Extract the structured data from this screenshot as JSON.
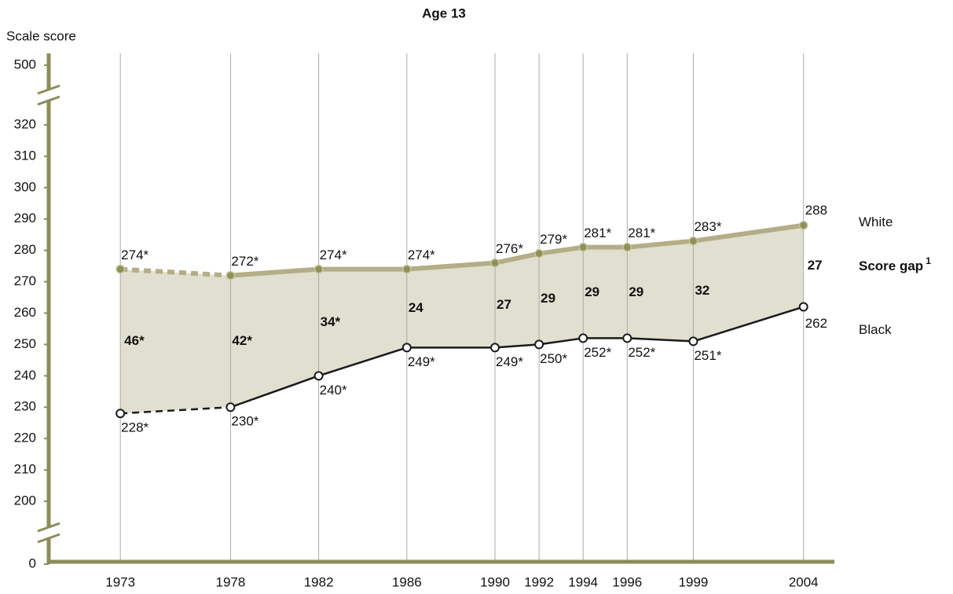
{
  "chart_data": {
    "type": "line",
    "title": "Age 13",
    "y_label": "Scale score",
    "x": [
      1973,
      1978,
      1982,
      1986,
      1990,
      1992,
      1994,
      1996,
      1999,
      2004
    ],
    "xticks": [
      1973,
      1978,
      1982,
      1986,
      1990,
      1992,
      1994,
      1996,
      1999,
      2004
    ],
    "xlim": [
      1969.75,
      2005.4
    ],
    "ylim": [
      0,
      500
    ],
    "yticks": [
      0,
      200,
      210,
      220,
      230,
      240,
      250,
      260,
      270,
      280,
      290,
      300,
      310,
      320,
      500
    ],
    "ybreaks": [
      [
        0,
        200
      ],
      [
        320,
        500
      ]
    ],
    "dashed_before": 1978,
    "grid": true,
    "series": [
      {
        "name": "White",
        "color": "#b3ad88",
        "marker_color": "#8c9156",
        "values": [
          274,
          272,
          274,
          274,
          276,
          279,
          281,
          281,
          283,
          288
        ],
        "value_labels": [
          "274*",
          "272*",
          "274*",
          "274*",
          "276*",
          "279*",
          "281*",
          "281*",
          "283*",
          "288"
        ]
      },
      {
        "name": "Black",
        "color": "#1a1a1a",
        "marker_color": "#ffffff",
        "values": [
          228,
          230,
          240,
          249,
          249,
          250,
          252,
          252,
          251,
          262
        ],
        "value_labels": [
          "228*",
          "230*",
          "240*",
          "249*",
          "249*",
          "250*",
          "252*",
          "252*",
          "251*",
          "262"
        ]
      }
    ],
    "gap": {
      "name": "Score gap",
      "superscript": "1",
      "color": "#e1dfcf",
      "values": [
        46,
        42,
        34,
        24,
        27,
        29,
        29,
        29,
        32,
        27
      ],
      "value_labels": [
        "46*",
        "42*",
        "34*",
        "24",
        "27",
        "29",
        "29",
        "29",
        "32",
        "27"
      ]
    }
  }
}
